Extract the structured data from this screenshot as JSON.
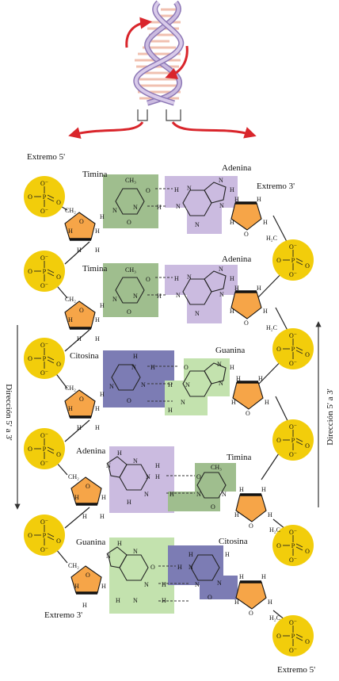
{
  "labels": {
    "extremo_5_top": "Extremo 5'",
    "extremo_3_top": "Extremo 3'",
    "extremo_3_bottom": "Extremo 3'",
    "extremo_5_bottom": "Extremo 5'",
    "direccion_left": "Dirección 5' a 3'",
    "direccion_right": "Dirección 5' a 3'"
  },
  "atoms": {
    "P": "P",
    "O": "O",
    "Oneg": "O⁻",
    "N": "N",
    "H": "H",
    "C": "C",
    "CH3": "CH₃",
    "CH2": "CH₂",
    "H2C": "H₂C"
  },
  "pairs": [
    {
      "left": "Timina",
      "right": "Adenina"
    },
    {
      "left": "Timina",
      "right": "Adenina"
    },
    {
      "left": "Citosina",
      "right": "Guanina"
    },
    {
      "left": "Adenina",
      "right": "Timina"
    },
    {
      "left": "Guanina",
      "right": "Citosina"
    }
  ],
  "colors": {
    "phosphate": "#f2cd0b",
    "sugar": "#f6a548",
    "timina": "#9fbe8e",
    "adenina": "#cbbbe0",
    "citosina": "#7c7cb4",
    "guanina": "#c3e2ae",
    "arrow": "#d9252b",
    "helix_strand": "#b7a3d1",
    "helix_rung": "#f0c0b0"
  }
}
